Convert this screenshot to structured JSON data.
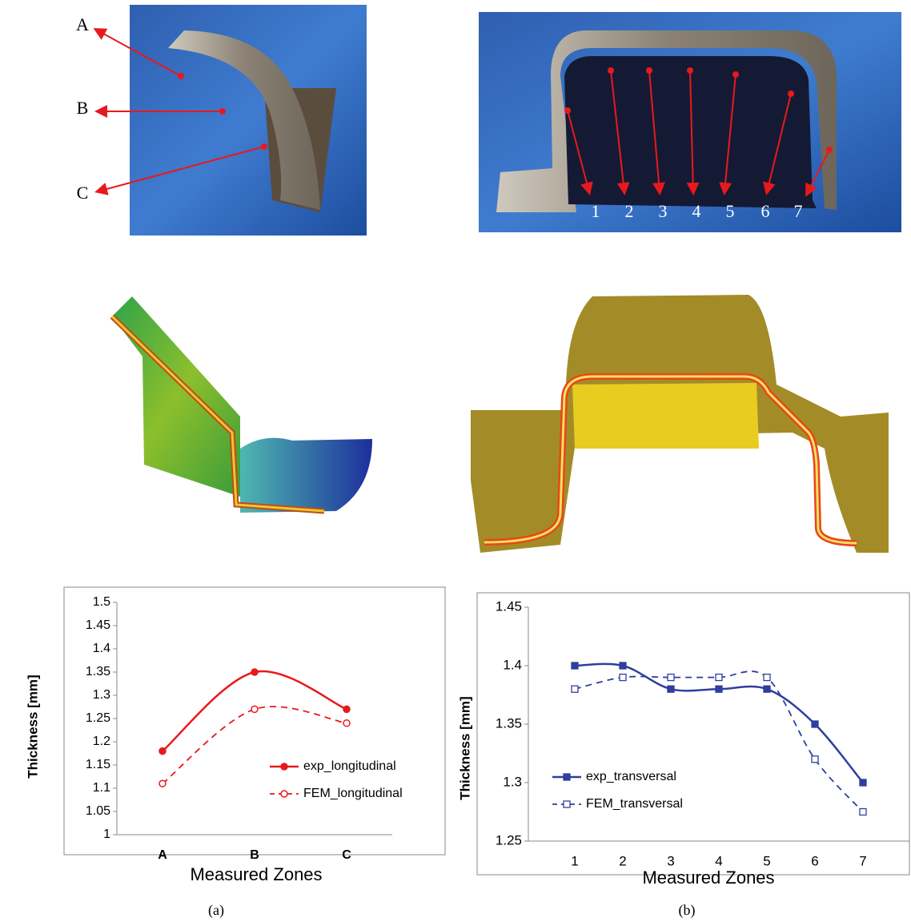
{
  "photo_labels": {
    "longitudinal": [
      "A",
      "B",
      "C"
    ],
    "transversal": [
      "1",
      "2",
      "3",
      "4",
      "5",
      "6",
      "7"
    ]
  },
  "captions": [
    "(a)",
    "(b)"
  ],
  "chart_data": [
    {
      "type": "line",
      "ylabel": "Thickness [mm]",
      "xlabel": "Measured Zones",
      "categories": [
        "A",
        "B",
        "C"
      ],
      "series": [
        {
          "name": "exp_longitudinal",
          "color": "#e8191c",
          "values": [
            1.18,
            1.35,
            1.27
          ]
        },
        {
          "name": "FEM_longitudinal",
          "color": "#e8191c",
          "values": [
            1.11,
            1.27,
            1.24
          ]
        }
      ],
      "ylim": [
        1,
        1.5
      ],
      "yticks": [
        1,
        1.05,
        1.1,
        1.15,
        1.2,
        1.25,
        1.3,
        1.35,
        1.4,
        1.45,
        1.5
      ],
      "grid": false,
      "legend": "lower right"
    },
    {
      "type": "line",
      "ylabel": "Thickness [mm]",
      "xlabel": "Measured Zones",
      "categories": [
        "1",
        "2",
        "3",
        "4",
        "5",
        "6",
        "7"
      ],
      "series": [
        {
          "name": "exp_transversal",
          "color": "#2e3f9e",
          "values": [
            1.4,
            1.4,
            1.38,
            1.38,
            1.38,
            1.35,
            1.3
          ]
        },
        {
          "name": "FEM_transversal",
          "color": "#2e3f9e",
          "values": [
            1.38,
            1.39,
            1.39,
            1.39,
            1.39,
            1.32,
            1.275
          ]
        }
      ],
      "ylim": [
        1.25,
        1.45
      ],
      "yticks": [
        1.25,
        1.3,
        1.35,
        1.4,
        1.45
      ],
      "grid": false,
      "legend": "lower left"
    }
  ]
}
